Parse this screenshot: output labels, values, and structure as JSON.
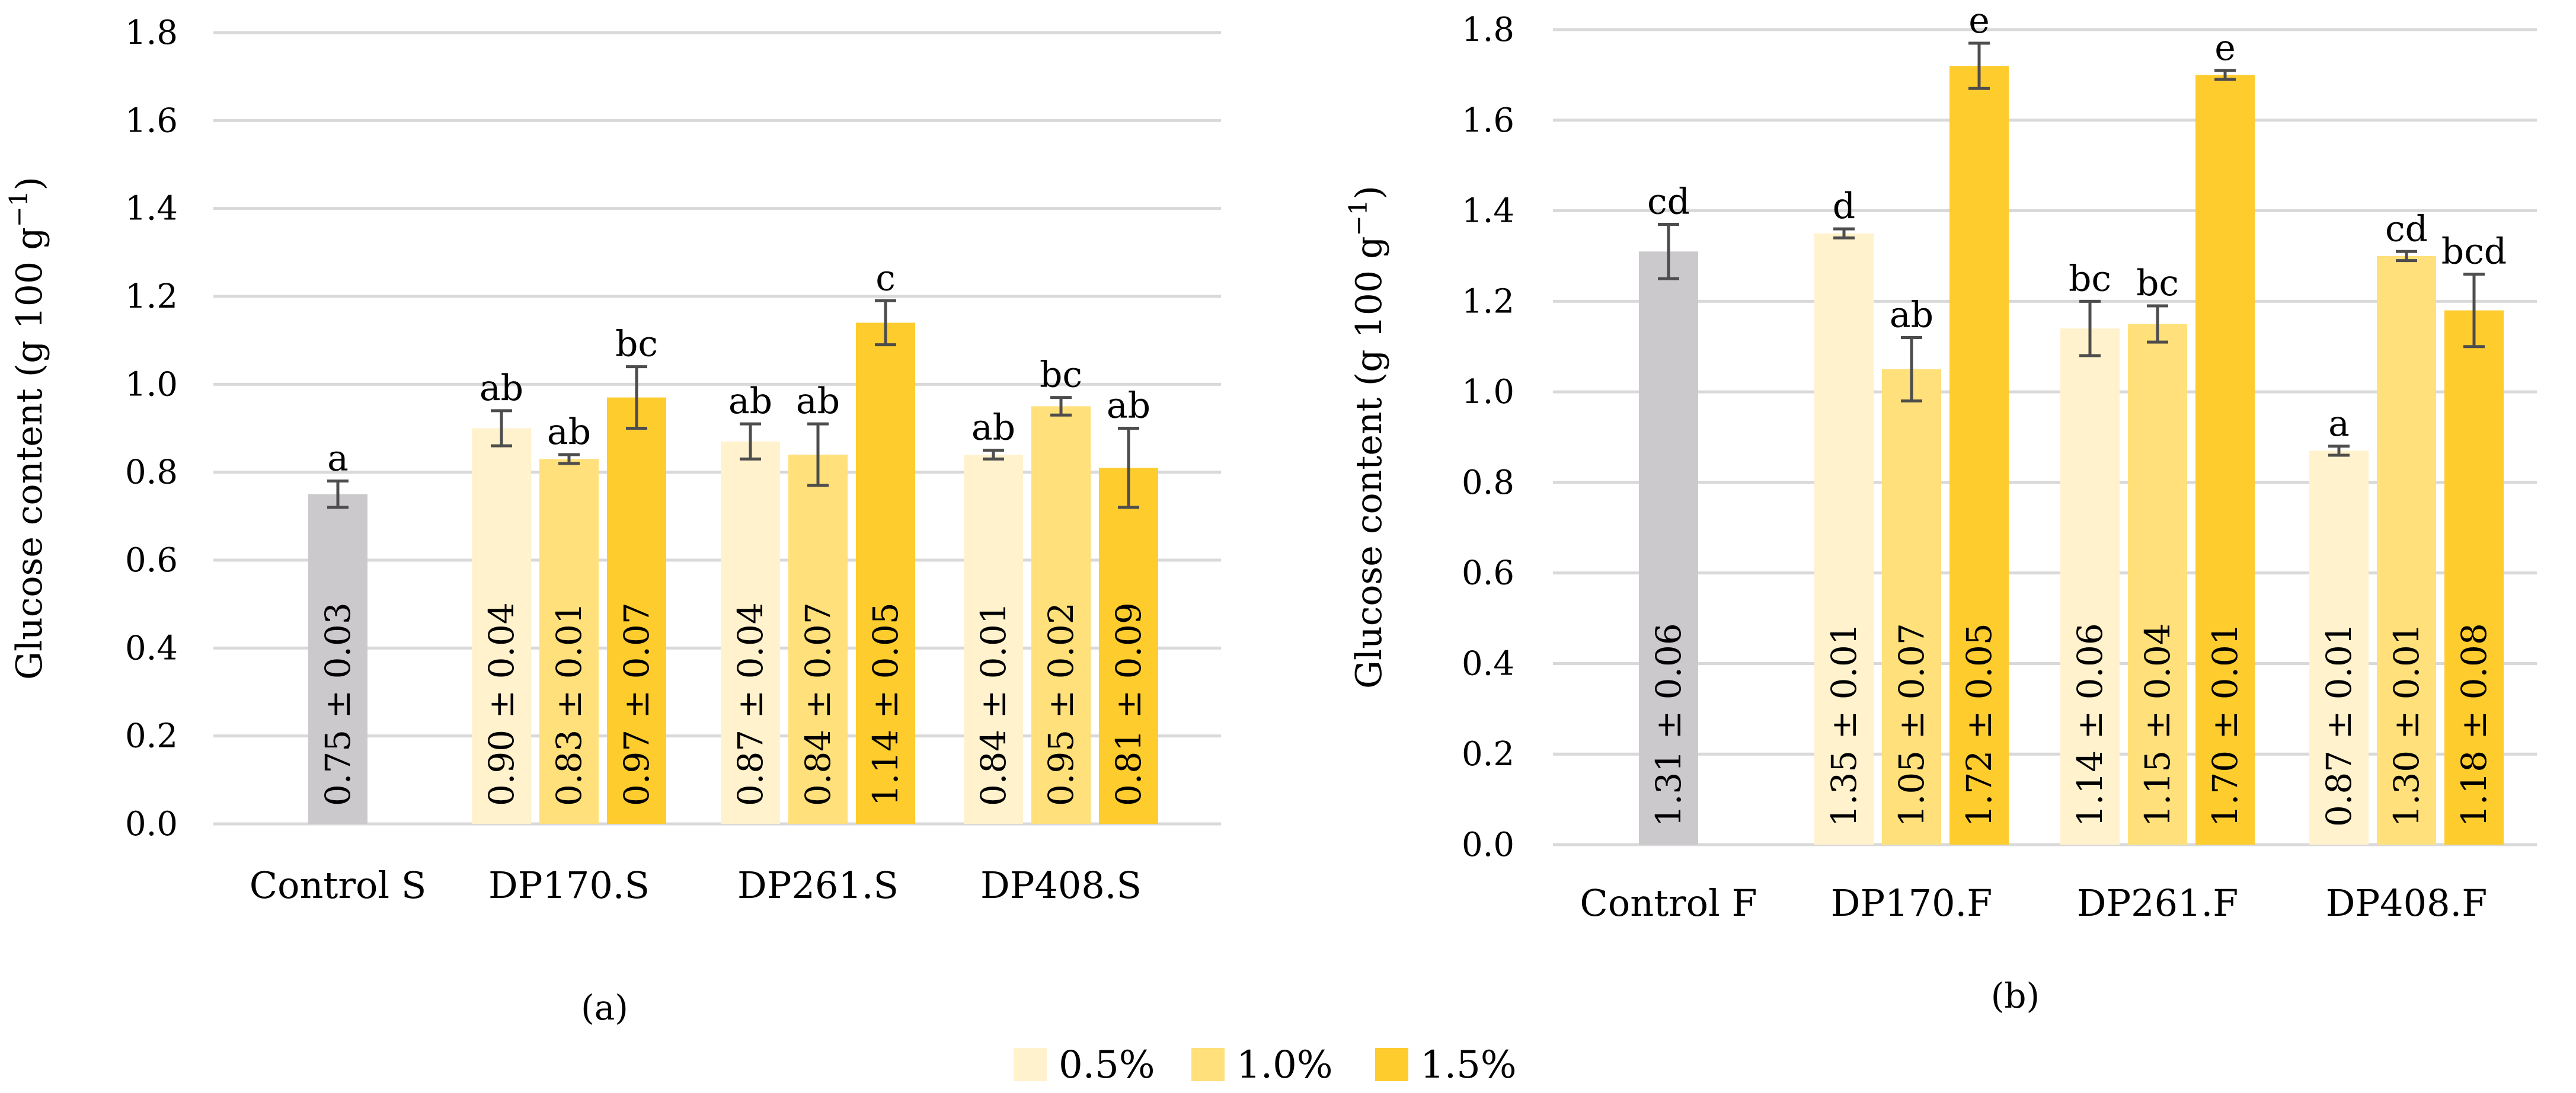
{
  "chart_data": [
    {
      "id": "a",
      "type": "bar",
      "panel_label": "(a)",
      "ylabel": "Glucose content (g 100 g",
      "ylabel_sup": "−1",
      "ylabel_close": ")",
      "ylim": [
        0,
        1.8
      ],
      "yticks": [
        "0.0",
        "0.2",
        "0.4",
        "0.6",
        "0.8",
        "1.0",
        "1.2",
        "1.4",
        "1.6",
        "1.8"
      ],
      "groups": [
        {
          "label": "Control S",
          "bars": [
            {
              "series": "control",
              "value": 0.75,
              "error": 0.03,
              "letter": "a",
              "text": "0.75 ± 0.03"
            }
          ]
        },
        {
          "label": "DP170.S",
          "bars": [
            {
              "series": "0.5%",
              "value": 0.9,
              "error": 0.04,
              "letter": "ab",
              "text": "0.90 ± 0.04"
            },
            {
              "series": "1.0%",
              "value": 0.83,
              "error": 0.01,
              "letter": "ab",
              "text": "0.83 ± 0.01"
            },
            {
              "series": "1.5%",
              "value": 0.97,
              "error": 0.07,
              "letter": "bc",
              "text": "0.97 ± 0.07"
            }
          ]
        },
        {
          "label": "DP261.S",
          "bars": [
            {
              "series": "0.5%",
              "value": 0.87,
              "error": 0.04,
              "letter": "ab",
              "text": "0.87 ± 0.04"
            },
            {
              "series": "1.0%",
              "value": 0.84,
              "error": 0.07,
              "letter": "ab",
              "text": "0.84 ± 0.07"
            },
            {
              "series": "1.5%",
              "value": 1.14,
              "error": 0.05,
              "letter": "c",
              "text": "1.14 ± 0.05"
            }
          ]
        },
        {
          "label": "DP408.S",
          "bars": [
            {
              "series": "0.5%",
              "value": 0.84,
              "error": 0.01,
              "letter": "ab",
              "text": "0.84 ± 0.01"
            },
            {
              "series": "1.0%",
              "value": 0.95,
              "error": 0.02,
              "letter": "bc",
              "text": "0.95 ± 0.02"
            },
            {
              "series": "1.5%",
              "value": 0.81,
              "error": 0.09,
              "letter": "ab",
              "text": "0.81 ± 0.09"
            }
          ]
        }
      ]
    },
    {
      "id": "b",
      "type": "bar",
      "panel_label": "(b)",
      "ylabel": "Glucose content (g 100 g",
      "ylabel_sup": "−1",
      "ylabel_close": ")",
      "ylim": [
        0,
        1.8
      ],
      "yticks": [
        "0.0",
        "0.2",
        "0.4",
        "0.6",
        "0.8",
        "1.0",
        "1.2",
        "1.4",
        "1.6",
        "1.8"
      ],
      "groups": [
        {
          "label": "Control F",
          "bars": [
            {
              "series": "control",
              "value": 1.31,
              "error": 0.06,
              "letter": "cd",
              "text": "1.31 ± 0.06"
            }
          ]
        },
        {
          "label": "DP170.F",
          "bars": [
            {
              "series": "0.5%",
              "value": 1.35,
              "error": 0.01,
              "letter": "d",
              "text": "1.35 ± 0.01"
            },
            {
              "series": "1.0%",
              "value": 1.05,
              "error": 0.07,
              "letter": "ab",
              "text": "1.05 ± 0.07"
            },
            {
              "series": "1.5%",
              "value": 1.72,
              "error": 0.05,
              "letter": "e",
              "text": "1.72 ± 0.05"
            }
          ]
        },
        {
          "label": "DP261.F",
          "bars": [
            {
              "series": "0.5%",
              "value": 1.14,
              "error": 0.06,
              "letter": "bc",
              "text": "1.14 ± 0.06"
            },
            {
              "series": "1.0%",
              "value": 1.15,
              "error": 0.04,
              "letter": "bc",
              "text": "1.15 ± 0.04"
            },
            {
              "series": "1.5%",
              "value": 1.7,
              "error": 0.01,
              "letter": "e",
              "text": "1.70 ± 0.01"
            }
          ]
        },
        {
          "label": "DP408.F",
          "bars": [
            {
              "series": "0.5%",
              "value": 0.87,
              "error": 0.01,
              "letter": "a",
              "text": "0.87 ± 0.01"
            },
            {
              "series": "1.0%",
              "value": 1.3,
              "error": 0.01,
              "letter": "cd",
              "text": "1.30 ± 0.01"
            },
            {
              "series": "1.5%",
              "value": 1.18,
              "error": 0.08,
              "letter": "bcd",
              "text": "1.18 ± 0.08"
            }
          ]
        }
      ]
    }
  ],
  "legend": [
    {
      "name": "0.5%",
      "color": "#FFF2CC"
    },
    {
      "name": "1.0%",
      "color": "#FFE07A"
    },
    {
      "name": "1.5%",
      "color": "#FFCC2E"
    }
  ],
  "colors": {
    "control": "#CCC9CC",
    "0.5%": "#FFF2CC",
    "1.0%": "#FFE07A",
    "1.5%": "#FFCC2E",
    "grid": "#D9D9D9",
    "error": "#4D4D4D"
  }
}
